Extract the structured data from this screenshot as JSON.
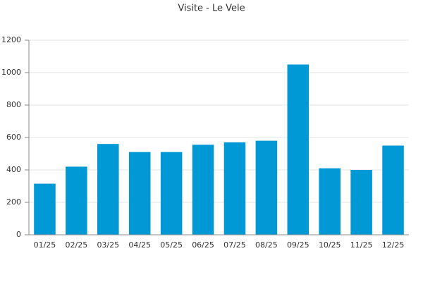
{
  "chart_data": {
    "type": "bar",
    "title": "Visite - Le Vele",
    "categories": [
      "01/25",
      "02/25",
      "03/25",
      "04/25",
      "05/25",
      "06/25",
      "07/25",
      "08/25",
      "09/25",
      "10/25",
      "11/25",
      "12/25"
    ],
    "values": [
      315,
      420,
      560,
      510,
      510,
      555,
      570,
      580,
      1050,
      410,
      400,
      550
    ],
    "color": "#0099d6",
    "ylim": [
      0,
      1200
    ],
    "yticks": [
      0,
      200,
      400,
      600,
      800,
      1000,
      1200
    ],
    "grid": true
  }
}
